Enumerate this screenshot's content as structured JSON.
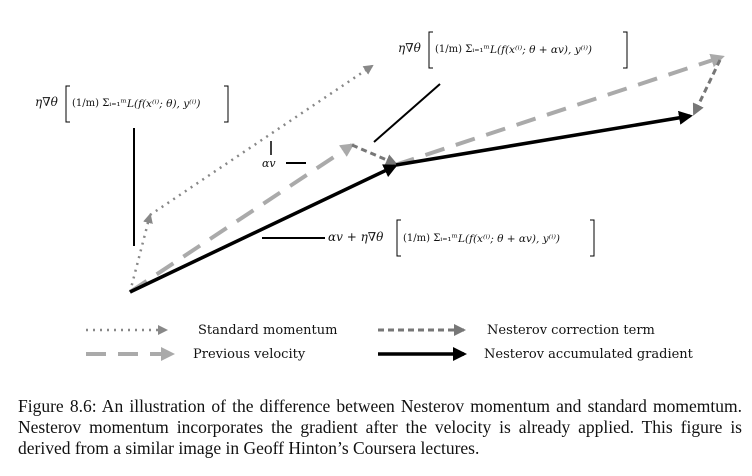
{
  "legend": {
    "standard_momentum": "Standard momentum",
    "previous_velocity": "Previous velocity",
    "nesterov_correction": "Nesterov correction term",
    "nesterov_accumulated": "Nesterov accumulated gradient"
  },
  "labels": {
    "standard_gradient_prefix": "η∇θ",
    "standard_gradient_sum": "(1/m) Σᵢ₌₁ᵐ",
    "standard_gradient_term": "L(f(x⁽ⁱ⁾; θ), y⁽ⁱ⁾)",
    "nesterov_gradient_prefix": "η∇θ",
    "nesterov_gradient_sum": "(1/m) Σᵢ₌₁ᵐ",
    "nesterov_gradient_term": "L(f(x⁽ⁱ⁾; θ + αv), y⁽ⁱ⁾)",
    "alpha_v": "αv",
    "combined_prefix": "αv + η∇θ",
    "combined_sum": "(1/m) Σᵢ₌₁ᵐ",
    "combined_term": "L(f(x⁽ⁱ⁾; θ + αv), y⁽ⁱ⁾)"
  },
  "caption": "Figure 8.6: An illustration of the difference between Nesterov momentum and standard momemtum. Nesterov momentum incorporates the gradient after the velocity is already applied. This figure is derived from a similar image in Geoff Hinton’s Coursera lectures.",
  "colors": {
    "standard": "#888888",
    "previous": "#aaaaaa",
    "correction": "#777777",
    "accumulated": "#000000"
  }
}
